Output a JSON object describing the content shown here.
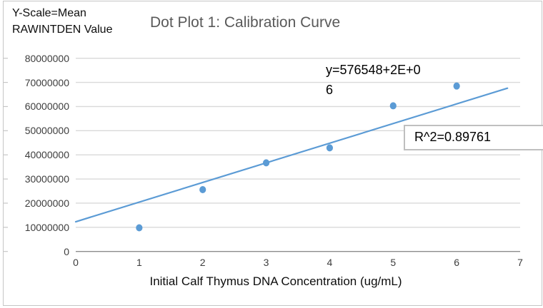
{
  "header": {
    "y_scale_note_line1": "Y-Scale=Mean",
    "y_scale_note_line2": "RAWINTDEN Value",
    "title": "Dot Plot 1: Calibration Curve"
  },
  "annotations": {
    "equation_line1": "y=576548+2E+0",
    "equation_line2": "6",
    "r_squared": "R^2=0.89761"
  },
  "chart_data": {
    "type": "scatter",
    "title": "Dot Plot 1: Calibration Curve",
    "xlabel": "Initial Calf Thymus DNA Concentration (ug/mL)",
    "ylabel": "Mean RAWINTDEN Value",
    "xlim": [
      0,
      7
    ],
    "ylim": [
      0,
      80000000
    ],
    "x_ticks": [
      0,
      1,
      2,
      3,
      4,
      5,
      6,
      7
    ],
    "y_ticks": [
      0,
      10000000,
      20000000,
      30000000,
      40000000,
      50000000,
      60000000,
      70000000,
      80000000
    ],
    "grid": "horizontal",
    "legend": "none",
    "points": [
      {
        "x": 1,
        "y": 9800000
      },
      {
        "x": 2,
        "y": 25600000
      },
      {
        "x": 3,
        "y": 36700000
      },
      {
        "x": 4,
        "y": 42900000
      },
      {
        "x": 5,
        "y": 60300000
      },
      {
        "x": 6,
        "y": 68500000
      }
    ],
    "trendline": {
      "x_start": 0,
      "y_start": 12300000,
      "x_end": 6.8,
      "y_end": 67600000,
      "equation": "y=576548+2E+06",
      "r_squared": 0.89761
    },
    "colors": {
      "point": "#5b9bd5",
      "trendline": "#5b9bd5",
      "gridline": "#d9d9d9",
      "axis": "#8c8c8c",
      "tick_label": "#3d3d3d",
      "title": "#595959"
    }
  }
}
